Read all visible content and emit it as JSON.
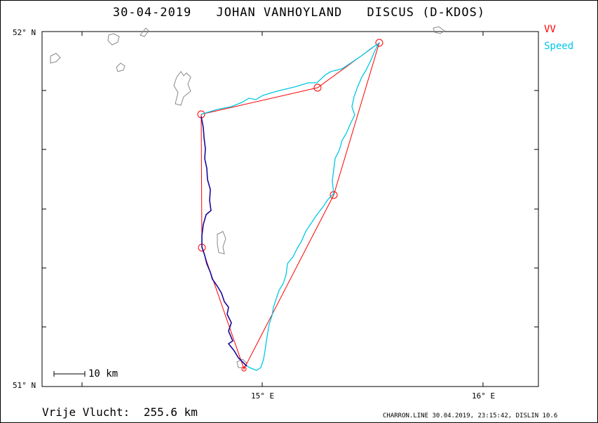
{
  "title": {
    "date": "30-04-2019",
    "pilot": "JOHAN VANHOYLAND",
    "glider": "DISCUS (D-KDOS)"
  },
  "legend": [
    {
      "label": "VV",
      "color": "#ff0000"
    },
    {
      "label": "Speed",
      "color": "#00c8e6"
    }
  ],
  "axes": {
    "lat_top": "52° N",
    "lat_bottom": "51° N",
    "lon_1": "15° E",
    "lon_2": "16° E"
  },
  "scale_label": "10 km",
  "result": {
    "label": "Vrije Vlucht:",
    "value": "255.6 km"
  },
  "footer": "CHARRON.LINE 30.04.2019, 23:15:42, DISLIN 10.6",
  "colors": {
    "task": "#ff0000",
    "track_fast": "#00c8e6",
    "track_slow": "#1a0a9a",
    "water": "#888888"
  }
}
